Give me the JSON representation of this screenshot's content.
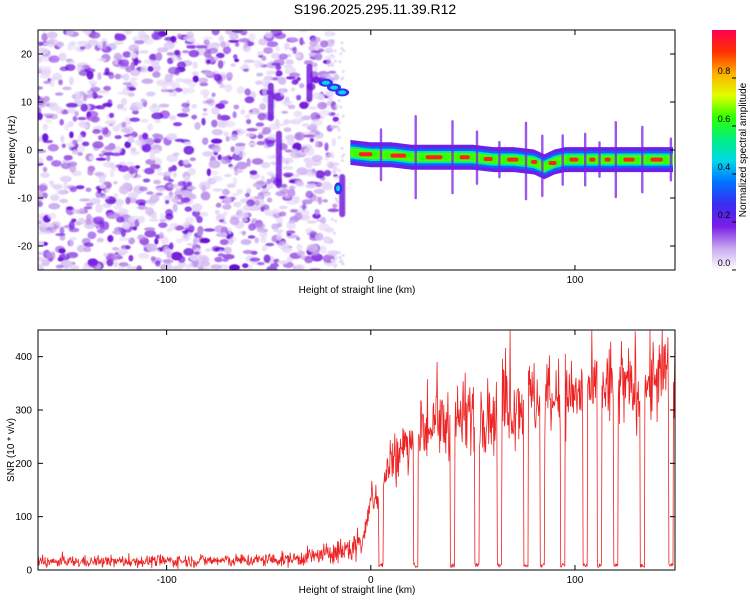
{
  "title": "S196.2025.295.11.39.R12",
  "chart_data": [
    {
      "type": "heatmap",
      "name": "spectrogram",
      "title": "S196.2025.295.11.39.R12",
      "xlabel": "Height of straight line (km)",
      "ylabel": "Frequency (Hz)",
      "xlim": [
        -163,
        149
      ],
      "ylim": [
        -25,
        25
      ],
      "xticks": [
        -100,
        0,
        100
      ],
      "yticks": [
        20,
        10,
        0,
        -10,
        -20
      ],
      "colorbar": {
        "label": "Normalized spectral amplitude",
        "range": [
          0,
          1
        ],
        "ticks": [
          0.0,
          0.2,
          0.4,
          0.6,
          0.8
        ],
        "colormap": [
          "#ffffff",
          "#c8a8f0",
          "#7a1ee6",
          "#3a2cf0",
          "#0070ff",
          "#00d8e8",
          "#00f080",
          "#30ff00",
          "#e0ff00",
          "#ffb000",
          "#ff3000",
          "#ff0050"
        ]
      },
      "noise_region_x": [
        -163,
        -17
      ],
      "signal_track": {
        "x": [
          -10,
          0,
          10,
          20,
          30,
          40,
          50,
          60,
          70,
          80,
          85,
          90,
          95,
          100,
          110,
          120,
          130,
          140,
          148
        ],
        "frequency": [
          -0.5,
          -1,
          -1,
          -1.5,
          -1.5,
          -1.5,
          -1.5,
          -2,
          -2,
          -2.5,
          -3.5,
          -2.5,
          -2,
          -2,
          -2,
          -2,
          -2,
          -2,
          -2
        ]
      },
      "early_track": {
        "x": [
          -22,
          -18,
          -14
        ],
        "frequency": [
          14,
          13,
          12
        ]
      }
    },
    {
      "type": "line",
      "name": "snr",
      "xlabel": "Height of straight line (km)",
      "ylabel": "SNR (10 * v/v)",
      "xlim": [
        -163,
        149
      ],
      "ylim": [
        0,
        450
      ],
      "xticks": [
        -100,
        0,
        100
      ],
      "yticks": [
        0,
        100,
        200,
        300,
        400
      ],
      "color": "#ee2222",
      "profile": {
        "x": [
          -163,
          -60,
          -40,
          -20,
          -10,
          -5,
          -2,
          0,
          5,
          10,
          20,
          30,
          40,
          50,
          60,
          70,
          80,
          90,
          100,
          110,
          120,
          130,
          140,
          149
        ],
        "snr": [
          15,
          18,
          20,
          30,
          40,
          50,
          80,
          130,
          150,
          200,
          240,
          270,
          280,
          300,
          290,
          310,
          320,
          320,
          330,
          340,
          350,
          340,
          360,
          370
        ]
      },
      "dropouts_x": [
        5,
        22,
        40,
        52,
        63,
        76,
        84,
        94,
        105,
        112,
        120,
        133,
        147
      ]
    }
  ]
}
